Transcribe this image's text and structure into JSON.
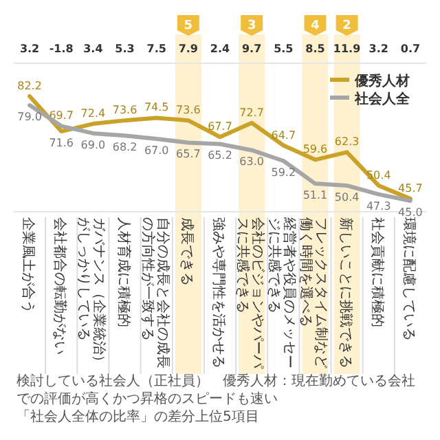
{
  "chart_data": {
    "type": "line",
    "categories": [
      "企業風土が合う",
      "会社都合の転勤がない",
      "ガバナンス（企業統治）がしっかりしている",
      "人材育成に積極的",
      "自分の成長と会社の成長の方向性が一致する",
      "成長できる",
      "強みや専門性を活かせる",
      "会社のビジョンやパーパスに共感できる",
      "経営者や役員のメッセージに共感できる",
      "フレックスタイム制など働く時間を選べる",
      "新しいことに挑戦できる",
      "社会貢献に積極的",
      "環境に配慮している"
    ],
    "series": [
      {
        "name": "優秀人材",
        "color": "#c9a227",
        "values": [
          82.2,
          69.7,
          72.4,
          73.6,
          74.5,
          73.6,
          67.7,
          72.7,
          64.7,
          59.6,
          62.3,
          50.4,
          45.7
        ],
        "value_labels": [
          "82.2",
          "69.7",
          "72.4",
          "73.6",
          "74.5",
          "73.6",
          "67.7",
          "72.7",
          "64.7",
          "59.6",
          "62.3",
          "50.4",
          "45.7"
        ]
      },
      {
        "name": "社会人全",
        "color": "#a6a6a6",
        "values": [
          79.0,
          71.6,
          69.0,
          68.2,
          67.0,
          65.7,
          65.2,
          63.0,
          59.2,
          51.1,
          50.4,
          47.3,
          45.0
        ],
        "value_labels": [
          "79.0",
          "71.6",
          "69.0",
          "68.2",
          "67.0",
          "65.7",
          "65.2",
          "63.0",
          "59.2",
          "51.1",
          "50.4",
          "47.3",
          "45.0"
        ]
      }
    ],
    "legend": "top right",
    "marker": "none",
    "line_style": "solid",
    "bands": [
      {
        "axis": "x",
        "from": "成長できる",
        "to": "成長できる",
        "color": "#fdf1d0"
      },
      {
        "axis": "x",
        "from": "会社のビジョンやパーパスに共感できる",
        "to": "会社のビジョンやパーパスに共感できる",
        "color": "#fdf1d0"
      },
      {
        "axis": "x",
        "from": "フレックスタイム制など働く時間を選べる",
        "to": "フレックスタイム制など働く時間を選べる",
        "color": "#fdf1d0"
      },
      {
        "axis": "x",
        "from": "新しいことに挑戦できる",
        "to": "新しいことに挑戦できる",
        "color": "#fdf1d0"
      }
    ],
    "annotations": [
      "3.2",
      "-1.8",
      "3.4",
      "5.3",
      "7.5",
      "7.9",
      "2.4",
      "9.7",
      "5.5",
      "8.5",
      "11.9",
      "3.2",
      "0.7",
      "5",
      "3",
      "4",
      "2",
      "検討している社会人（正社員）　優秀人材：現在勤めている会社での評価が高くかつ昇格のスピードも速い",
      "「社会人全体の比率」の差分上位5項目"
    ]
  }
}
